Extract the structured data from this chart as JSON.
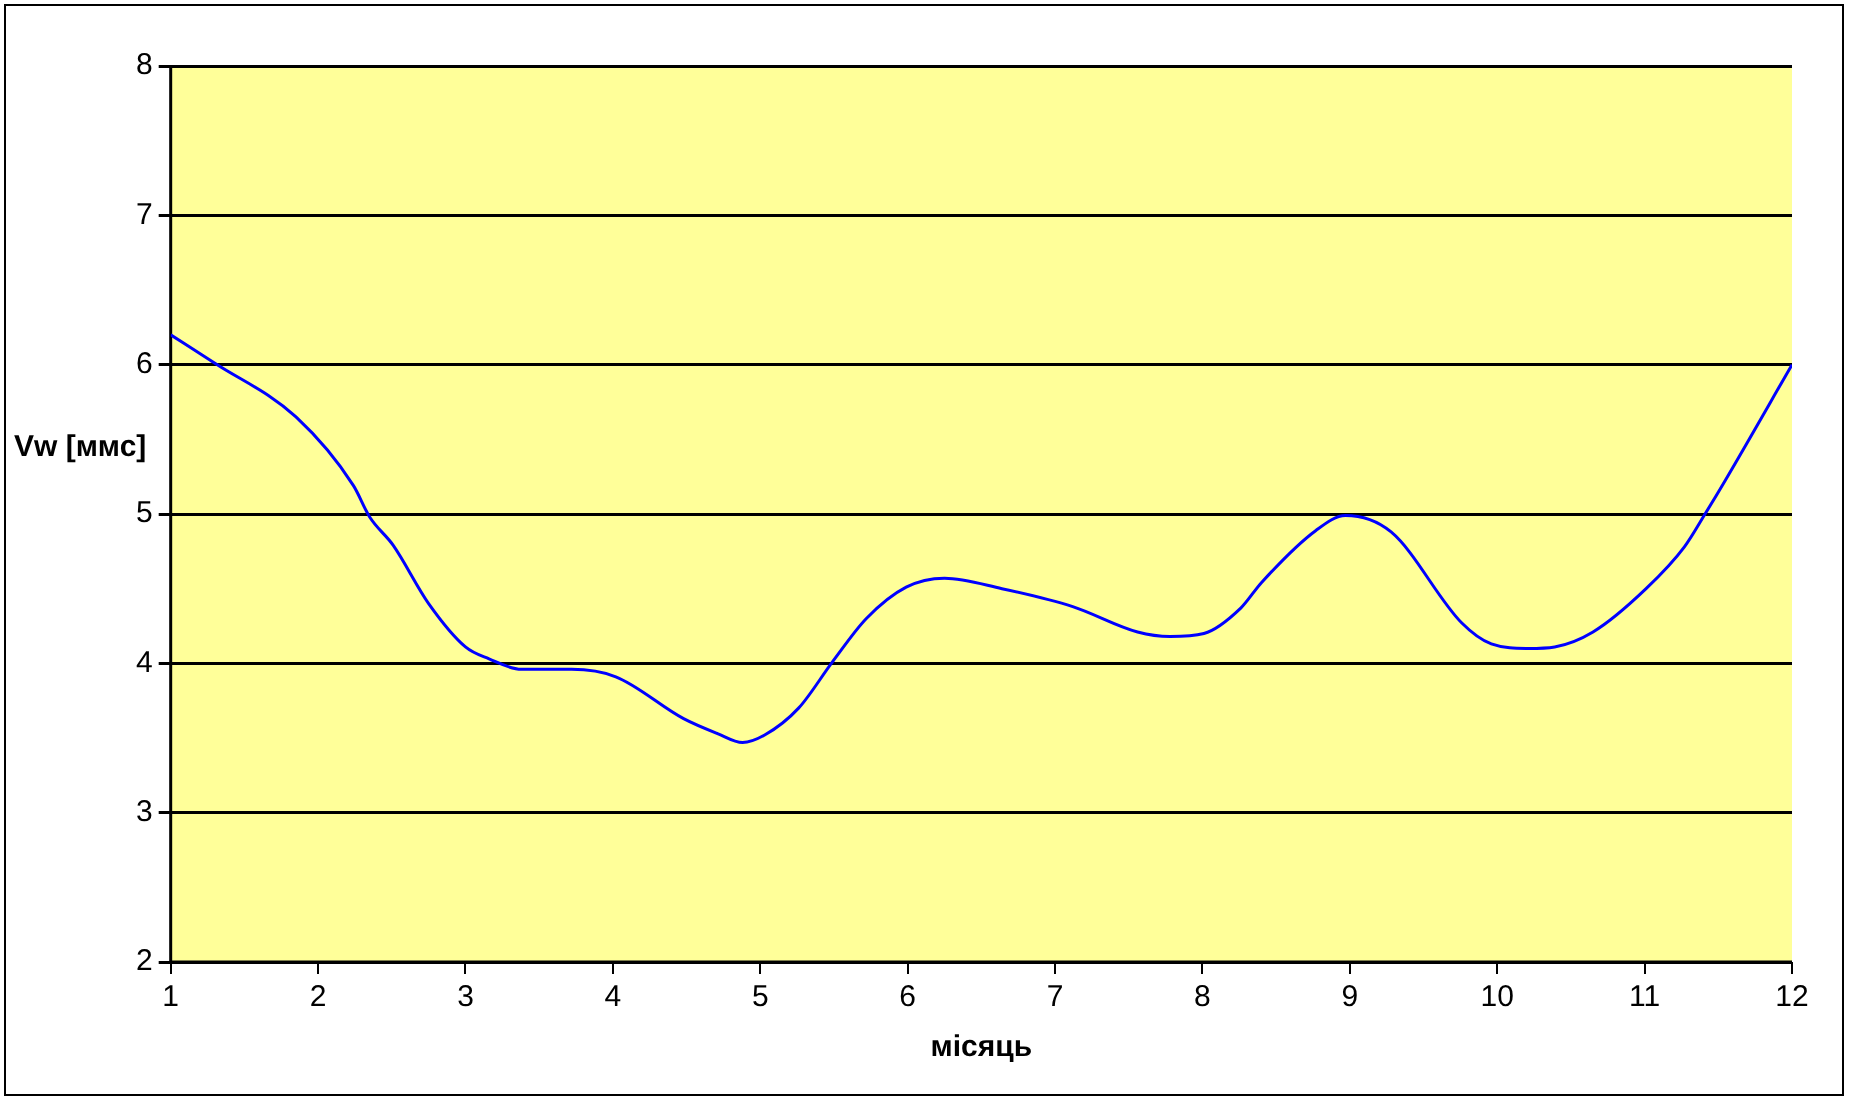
{
  "chart_data": {
    "type": "line",
    "xlabel": "місяць",
    "ylabel": "Vw [ммс]",
    "xlim": [
      1,
      12
    ],
    "xticks": [
      1,
      2,
      3,
      4,
      5,
      6,
      7,
      8,
      9,
      10,
      11,
      12
    ],
    "ylim": [
      2,
      8
    ],
    "yticks": [
      2,
      3,
      4,
      5,
      6,
      7,
      8
    ],
    "grid": "y",
    "legend": false,
    "marker": "none",
    "line_style": "solid",
    "series": [
      {
        "color": "#0000ff",
        "x": [
          1,
          1.3,
          1.85,
          2.24,
          2.35,
          2.51,
          2.75,
          3.0,
          3.16,
          3.38,
          3.72,
          4.02,
          4.48,
          4.71,
          4.88,
          5.03,
          5.26,
          5.49,
          5.72,
          5.99,
          6.25,
          6.64,
          7.12,
          7.56,
          7.78,
          8.01,
          8.26,
          8.4,
          8.77,
          8.97,
          9.28,
          9.76,
          9.96,
          10.21,
          10.39,
          10.65,
          11.01,
          11.27,
          11.41,
          11.55,
          12
        ],
        "values": [
          6.2,
          6.01,
          5.65,
          5.19,
          4.98,
          4.79,
          4.4,
          4.11,
          4.03,
          3.96,
          3.96,
          3.91,
          3.63,
          3.53,
          3.47,
          3.52,
          3.7,
          4.01,
          4.3,
          4.51,
          4.57,
          4.5,
          4.38,
          4.21,
          4.18,
          4.2,
          4.37,
          4.54,
          4.89,
          4.99,
          4.88,
          4.27,
          4.13,
          4.1,
          4.11,
          4.21,
          4.5,
          4.78,
          5.0,
          5.23,
          6.0
        ]
      }
    ]
  }
}
